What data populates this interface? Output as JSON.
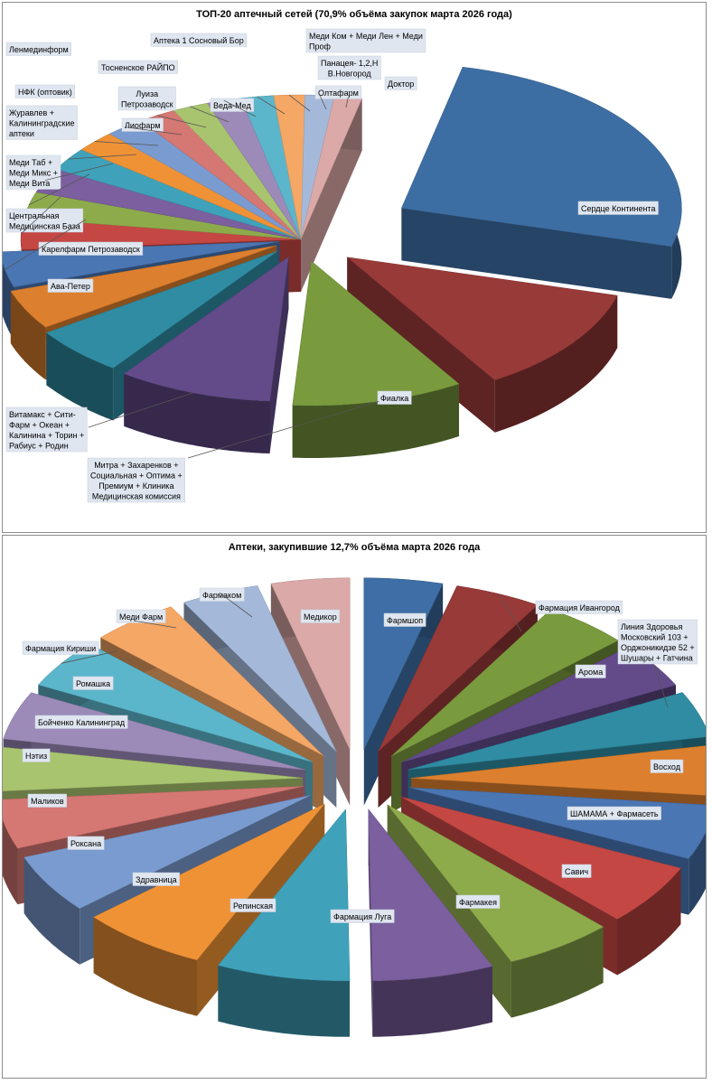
{
  "chart_data": [
    {
      "type": "pie",
      "title": "ТОП-20 аптечный сетей (70,9% объёма закупок марта 2026 года)",
      "style": "3d-exploded",
      "slices": [
        {
          "label": "Сердце Континента",
          "value": 26.0,
          "color": "#3d6ea3"
        },
        {
          "label": "Фиалка",
          "value": 12.0,
          "color": "#983a38"
        },
        {
          "label": "Митра + Захаренков + Социальная + Оптима + Премиум + Клиника Медицинская комиссия",
          "value": 10.0,
          "color": "#7a9a3e"
        },
        {
          "label": "Витамакс + Сити-Фарм + Океан + Калинина + Торин + Рабиус + Родин",
          "value": 9.0,
          "color": "#634b8a"
        },
        {
          "label": "Ава-Петер",
          "value": 5.5,
          "color": "#2f8ca3"
        },
        {
          "label": "Карелфарм Петрозаводск",
          "value": 4.5,
          "color": "#dc7f2e"
        },
        {
          "label": "Центральная Медицинская База",
          "value": 4.0,
          "color": "#4a76b3"
        },
        {
          "label": "Меди Таб + Меди Микс + Меди Вита",
          "value": 3.5,
          "color": "#c44744"
        },
        {
          "label": "Журавлев + Калининградские аптеки",
          "value": 3.0,
          "color": "#8eab4c"
        },
        {
          "label": "НФК (оптовик)",
          "value": 2.8,
          "color": "#7b5f9e"
        },
        {
          "label": "Ленмединформ",
          "value": 2.6,
          "color": "#3fa2ba"
        },
        {
          "label": "Лиофарм",
          "value": 2.4,
          "color": "#ef9236"
        },
        {
          "label": "Луиза Петрозаводск",
          "value": 2.3,
          "color": "#7a9bd0"
        },
        {
          "label": "Тосненское РАЙПО",
          "value": 2.2,
          "color": "#d57773"
        },
        {
          "label": "Веда-Мед",
          "value": 2.1,
          "color": "#a9c46f"
        },
        {
          "label": "Аптека 1 Сосновый Бор",
          "value": 2.0,
          "color": "#9c8ab9"
        },
        {
          "label": "Меди Ком + Меди Лен + Меди Проф",
          "value": 1.9,
          "color": "#5cb6cb"
        },
        {
          "label": "Панацея- 1,2,Н В.Новгород",
          "value": 1.8,
          "color": "#f5a765"
        },
        {
          "label": "Олтафарм",
          "value": 1.7,
          "color": "#a4b9da"
        },
        {
          "label": "Доктор",
          "value": 1.6,
          "color": "#dba9a7"
        }
      ]
    },
    {
      "type": "pie",
      "title": "Аптеки, закупившие 12,7% объёма марта 2026 года",
      "style": "3d-exploded",
      "slices": [
        {
          "label": "Фармшоп",
          "value": 4.0,
          "color": "#3e6ea5"
        },
        {
          "label": "Фармация Ивангород",
          "value": 4.4,
          "color": "#983a38"
        },
        {
          "label": "Арома",
          "value": 4.4,
          "color": "#7a9a3e"
        },
        {
          "label": "Линия Здоровья Московский 103 + Орджоникидзе 52 + Шушары + Гатчина",
          "value": 4.2,
          "color": "#634b8a"
        },
        {
          "label": "Восход",
          "value": 4.2,
          "color": "#2f8ca3"
        },
        {
          "label": "ШАМАМА + Фармасеть",
          "value": 4.6,
          "color": "#dc7f2e"
        },
        {
          "label": "Савич",
          "value": 5.0,
          "color": "#4a76b3"
        },
        {
          "label": "Фармакея",
          "value": 5.6,
          "color": "#c44744"
        },
        {
          "label": "Фармация Луга",
          "value": 5.6,
          "color": "#8eab4c"
        },
        {
          "label": "Репинская",
          "value": 6.2,
          "color": "#7b5f9e"
        },
        {
          "label": "Здравница",
          "value": 6.8,
          "color": "#3fa2ba"
        },
        {
          "label": "Роксана",
          "value": 6.5,
          "color": "#ef9236"
        },
        {
          "label": "Маликов",
          "value": 5.4,
          "color": "#7a9bd0"
        },
        {
          "label": "Нэтиз",
          "value": 4.5,
          "color": "#d57773"
        },
        {
          "label": "Бойченко Калининград",
          "value": 4.0,
          "color": "#a9c46f"
        },
        {
          "label": "Ромашка",
          "value": 4.4,
          "color": "#9c8ab9"
        },
        {
          "label": "Фармация Кириши",
          "value": 4.5,
          "color": "#5cb6cb"
        },
        {
          "label": "Меди Фарм",
          "value": 4.5,
          "color": "#f5a765"
        },
        {
          "label": "Фармаком",
          "value": 4.0,
          "color": "#a4b9da"
        },
        {
          "label": "Медикор",
          "value": 4.0,
          "color": "#dba9a7"
        }
      ]
    }
  ]
}
